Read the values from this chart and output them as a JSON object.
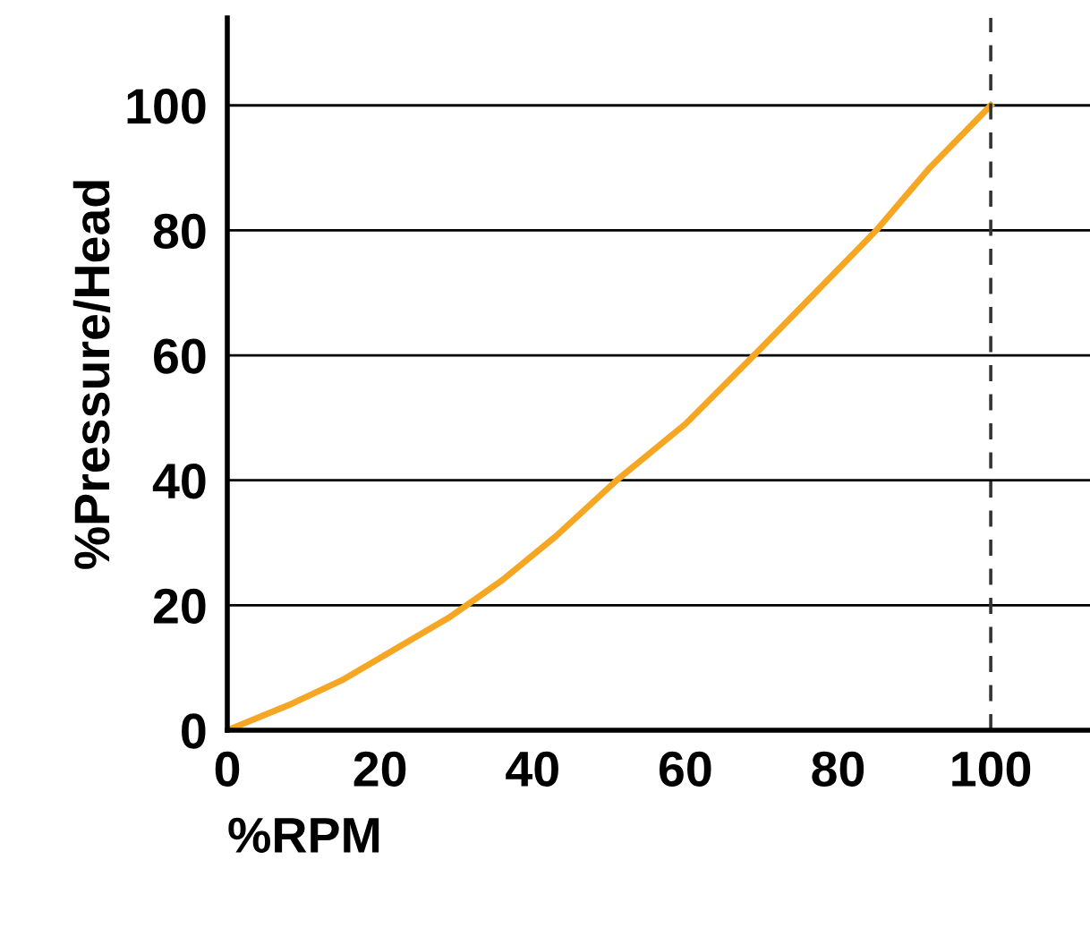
{
  "chart_data": {
    "type": "line",
    "xlabel": "%RPM",
    "ylabel": "%Pressure/Head",
    "x": [
      0,
      8,
      15,
      22,
      29,
      36,
      43,
      51,
      60,
      69,
      77,
      85,
      92,
      100
    ],
    "series": [
      {
        "color": "#f5a623",
        "values": [
          0,
          4,
          8,
          13,
          18,
          24,
          31,
          40,
          49,
          60,
          70,
          80,
          90,
          100
        ]
      }
    ],
    "xlim": [
      0,
      113
    ],
    "ylim": [
      0,
      114
    ],
    "xticks": [
      0,
      20,
      40,
      60,
      80,
      100
    ],
    "yticks": [
      0,
      20,
      40,
      60,
      80,
      100
    ],
    "grid": "y",
    "ref_lines": [
      {
        "axis": "x",
        "value": 100,
        "color": "#333333",
        "line_style": "dashed"
      }
    ]
  }
}
